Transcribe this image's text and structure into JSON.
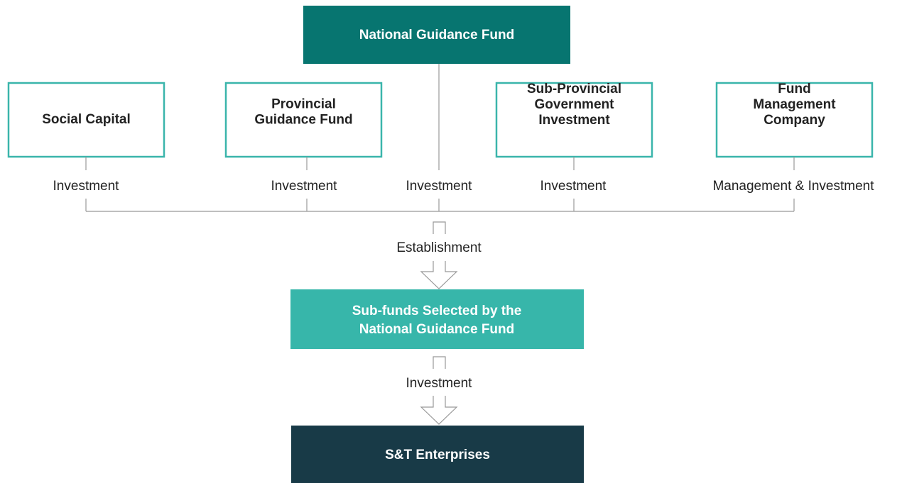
{
  "nodes": {
    "national": "National Guidance Fund",
    "sources": [
      [
        "Social Capital"
      ],
      [
        "Provincial",
        "Guidance Fund"
      ],
      [
        "Sub-Provincial",
        "Government",
        "Investment"
      ],
      [
        "Fund",
        "Management",
        "Company"
      ]
    ],
    "sub_funds": [
      "Sub-funds Selected by the",
      "National Guidance Fund"
    ],
    "enterprises": "S&T Enterprises"
  },
  "edges": {
    "source_labels": [
      "Investment",
      "Investment",
      "Investment",
      "Investment",
      "Management & Investment"
    ],
    "establishment": "Establishment",
    "investment": "Investment"
  }
}
